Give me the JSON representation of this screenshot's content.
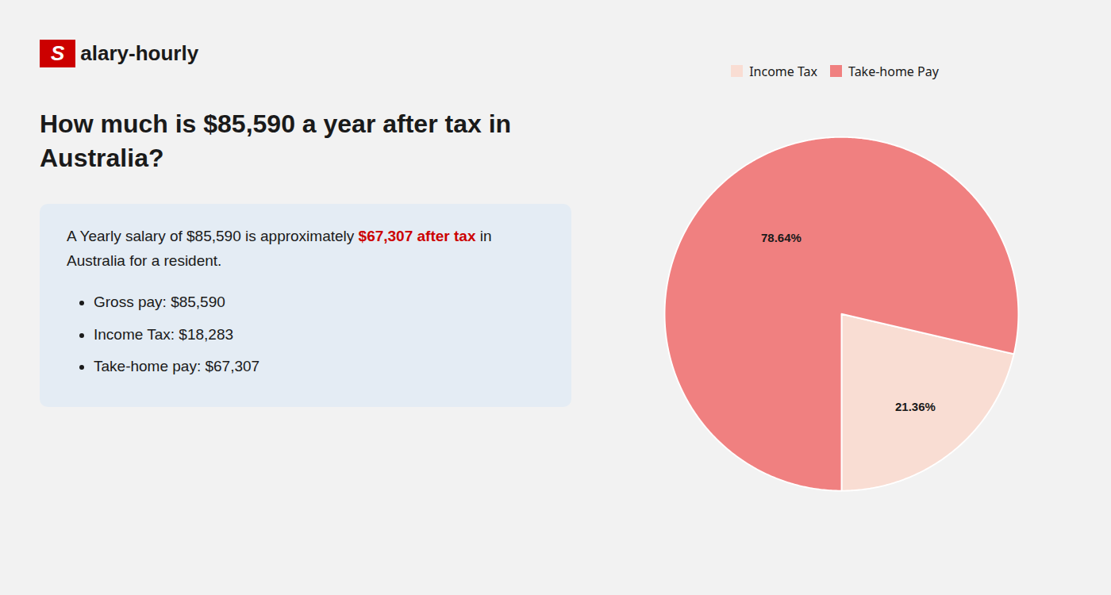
{
  "chart_data": {
    "type": "pie",
    "title": "How much is $85,590 a year after tax in\nAustralia?",
    "categories": [
      "Income Tax",
      "Take-home Pay"
    ],
    "values": [
      21.36,
      78.64
    ],
    "value_labels": [
      "21.36%",
      "78.64%"
    ],
    "colors": [
      "#f9ddd3",
      "#f08080"
    ],
    "data_labels": true,
    "legend": "top",
    "annotations": [
      {
        "text": "S",
        "color": "#cc0000"
      },
      {
        "text": "alary-hourly"
      },
      {
        "text": "A Yearly salary of $85,590 is approximately "
      },
      {
        "text": "$67,307 after tax",
        "color": "#cc0000"
      },
      {
        "text": " in"
      },
      {
        "text": "Australia for a resident."
      },
      {
        "text": "Gross pay: $85,590"
      },
      {
        "text": "Income Tax: $18,283"
      },
      {
        "text": "Take-home pay: $67,307"
      }
    ]
  }
}
